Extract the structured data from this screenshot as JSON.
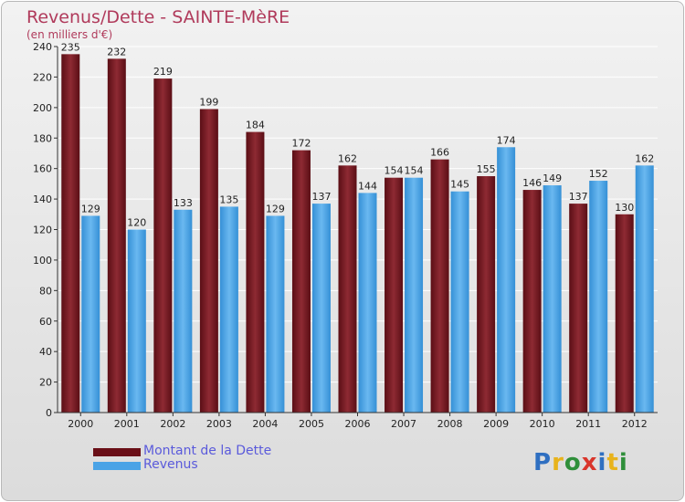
{
  "header": {
    "title": "Revenus/Dette - SAINTE-MèRE",
    "subtitle": "(en milliers d'€)"
  },
  "logo": {
    "letters": [
      "P",
      "r",
      "o",
      "x",
      "i",
      "t",
      "i"
    ],
    "colors": [
      "#2f6fc1",
      "#e8b31c",
      "#2f8f3a",
      "#d9352b",
      "#2f6fc1",
      "#e8b31c",
      "#2f8f3a"
    ]
  },
  "colors": {
    "dette": "#7a1c24",
    "revenus": "#4aa3e6",
    "axis_text": "#222222"
  },
  "chart_data": {
    "type": "bar",
    "title": "Revenus/Dette - SAINTE-MèRE",
    "ylabel": "(en milliers d'€)",
    "categories": [
      "2000",
      "2001",
      "2002",
      "2003",
      "2004",
      "2005",
      "2006",
      "2007",
      "2008",
      "2009",
      "2010",
      "2011",
      "2012"
    ],
    "series": [
      {
        "name": "Montant de la Dette",
        "values": [
          235,
          232,
          219,
          199,
          184,
          172,
          162,
          154,
          166,
          155,
          146,
          137,
          130
        ]
      },
      {
        "name": "Revenus",
        "values": [
          129,
          120,
          133,
          135,
          129,
          137,
          144,
          154,
          145,
          174,
          149,
          152,
          162
        ]
      }
    ],
    "ylim": [
      0,
      240
    ],
    "yticks": [
      0,
      20,
      40,
      60,
      80,
      100,
      120,
      140,
      160,
      180,
      200,
      220,
      240
    ],
    "grid": true,
    "legend": "bottom-left"
  }
}
